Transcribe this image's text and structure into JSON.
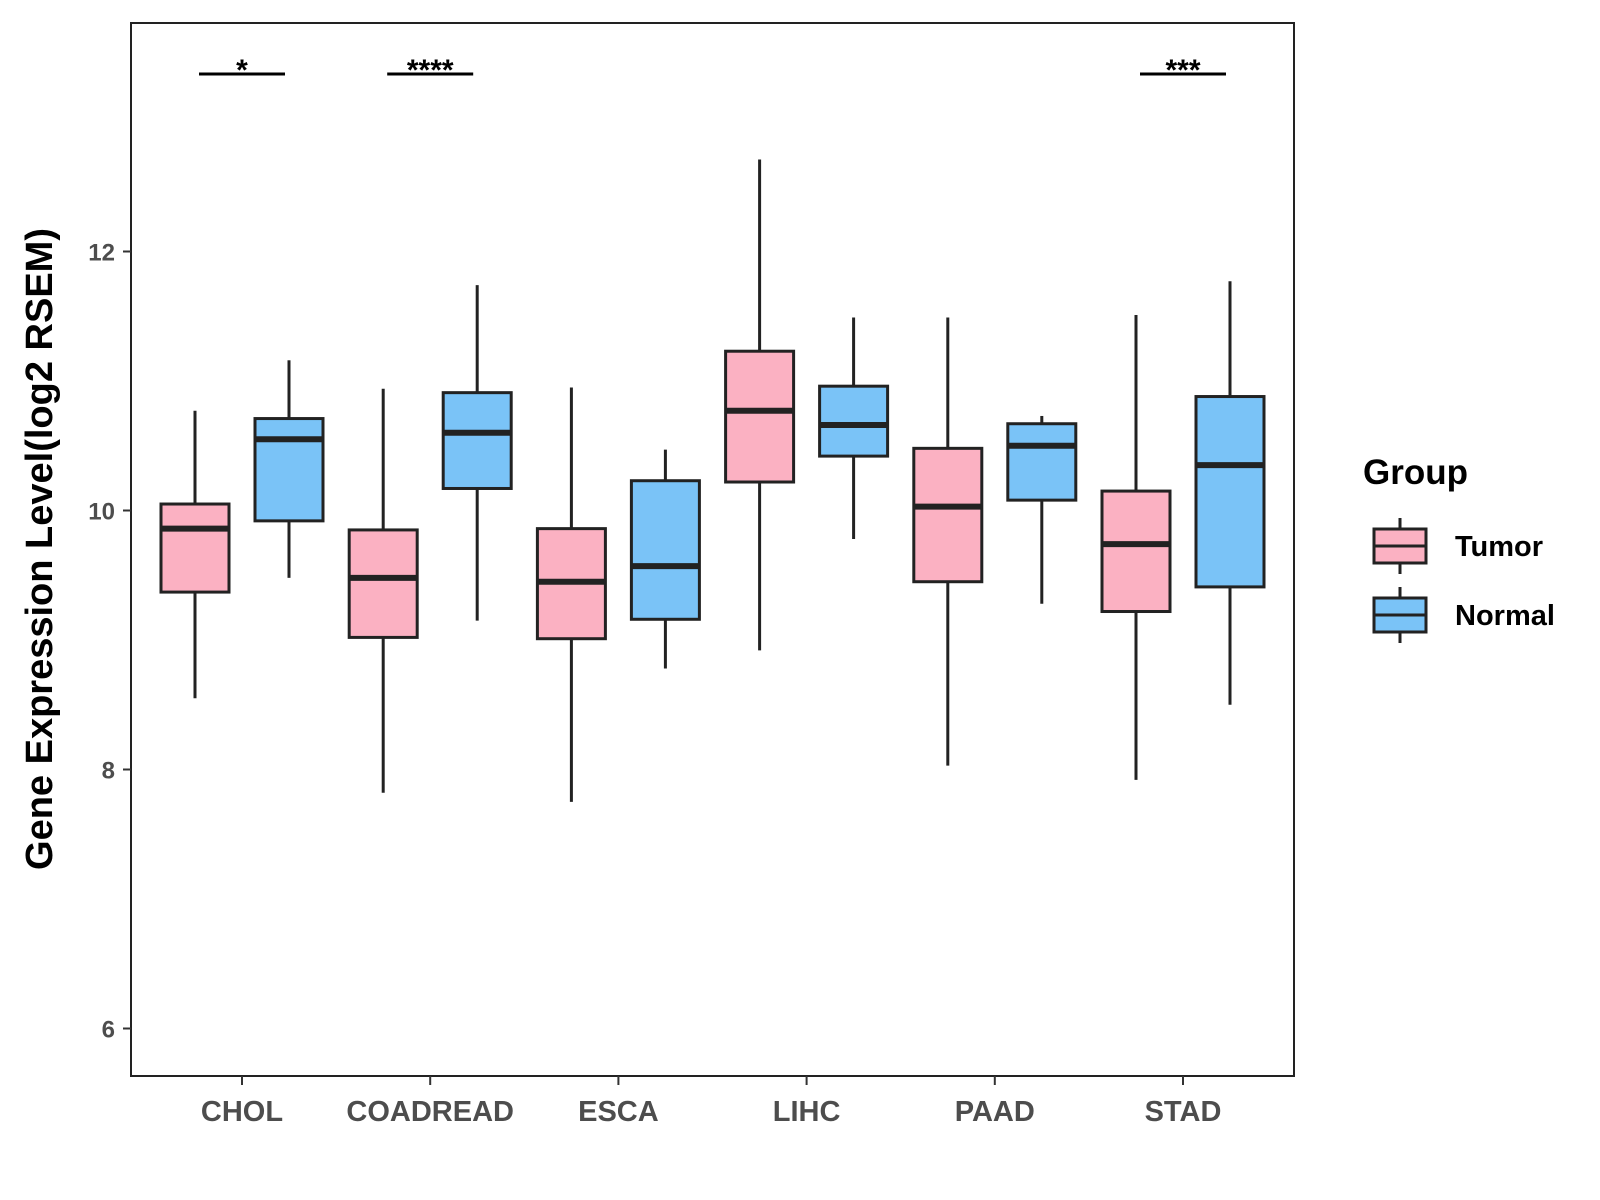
{
  "chart_data": {
    "type": "boxplot",
    "ylabel": "Gene Expression Level(log2 RSEM)",
    "xlabel": "",
    "ylim": [
      5.6,
      13.8
    ],
    "yticks": [
      6,
      8,
      10,
      12
    ],
    "categories": [
      "CHOL",
      "COADREAD",
      "ESCA",
      "LIHC",
      "PAAD",
      "STAD"
    ],
    "legend": {
      "title": "Group",
      "position": "right",
      "entries": [
        "Tumor",
        "Normal"
      ]
    },
    "colors": {
      "Tumor": "#FBB1C2",
      "Normal": "#7AC3F7",
      "stroke": "#222222"
    },
    "series": [
      {
        "name": "Tumor",
        "boxes": [
          {
            "whisker_low": 8.55,
            "q1": 9.37,
            "median": 9.86,
            "q3": 10.05,
            "whisker_high": 10.77
          },
          {
            "whisker_low": 7.82,
            "q1": 9.02,
            "median": 9.48,
            "q3": 9.85,
            "whisker_high": 10.94
          },
          {
            "whisker_low": 7.75,
            "q1": 9.01,
            "median": 9.45,
            "q3": 9.86,
            "whisker_high": 10.95
          },
          {
            "whisker_low": 8.92,
            "q1": 10.22,
            "median": 10.77,
            "q3": 11.23,
            "whisker_high": 12.71
          },
          {
            "whisker_low": 8.03,
            "q1": 9.45,
            "median": 10.03,
            "q3": 10.48,
            "whisker_high": 11.49
          },
          {
            "whisker_low": 7.92,
            "q1": 9.22,
            "median": 9.74,
            "q3": 10.15,
            "whisker_high": 11.51
          }
        ]
      },
      {
        "name": "Normal",
        "boxes": [
          {
            "whisker_low": 9.48,
            "q1": 9.92,
            "median": 10.55,
            "q3": 10.71,
            "whisker_high": 11.16
          },
          {
            "whisker_low": 9.15,
            "q1": 10.17,
            "median": 10.6,
            "q3": 10.91,
            "whisker_high": 11.74
          },
          {
            "whisker_low": 8.78,
            "q1": 9.16,
            "median": 9.57,
            "q3": 10.23,
            "whisker_high": 10.47
          },
          {
            "whisker_low": 9.78,
            "q1": 10.42,
            "median": 10.66,
            "q3": 10.96,
            "whisker_high": 11.49
          },
          {
            "whisker_low": 9.28,
            "q1": 10.08,
            "median": 10.5,
            "q3": 10.67,
            "whisker_high": 10.73
          },
          {
            "whisker_low": 8.5,
            "q1": 9.41,
            "median": 10.35,
            "q3": 10.88,
            "whisker_high": 11.77
          }
        ]
      }
    ],
    "significance": [
      {
        "category": "CHOL",
        "label": "*"
      },
      {
        "category": "COADREAD",
        "label": "****"
      },
      {
        "category": "STAD",
        "label": "***"
      }
    ]
  }
}
